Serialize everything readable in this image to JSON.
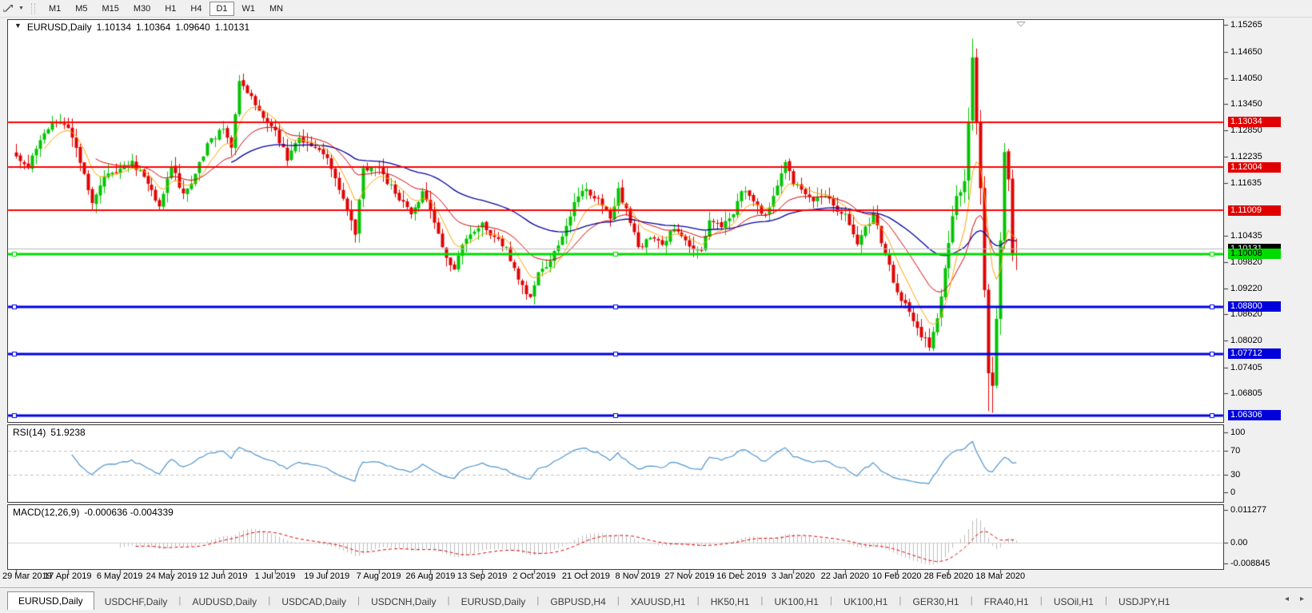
{
  "toolbar": {
    "timeframes": [
      "M1",
      "M5",
      "M15",
      "M30",
      "H1",
      "H4",
      "D1",
      "W1",
      "MN"
    ],
    "selected": "D1",
    "tool_icon": "cursor-tool"
  },
  "icons": {
    "collapse": "▼",
    "dropdown": "▼",
    "scroll_left": "◂",
    "scroll_right": "▸"
  },
  "header": {
    "symbol": "EURUSD,Daily",
    "open": "1.10134",
    "high": "1.10364",
    "low": "1.09640",
    "close": "1.10131"
  },
  "chart_data": {
    "type": "candlestick",
    "symbol": "EURUSD",
    "timeframe": "Daily",
    "bars": 252,
    "ylim": [
      1.0615,
      1.154
    ],
    "x_first_bar": 20,
    "bar_step": 4.985,
    "bars_per_label": 13,
    "anchors": [
      [
        0,
        1.1225
      ],
      [
        3,
        1.1198
      ],
      [
        6,
        1.1262
      ],
      [
        9,
        1.1302
      ],
      [
        13,
        1.129
      ],
      [
        16,
        1.121
      ],
      [
        19,
        1.1118
      ],
      [
        22,
        1.1178
      ],
      [
        26,
        1.1197
      ],
      [
        29,
        1.1215
      ],
      [
        33,
        1.1162
      ],
      [
        36,
        1.111
      ],
      [
        39,
        1.1202
      ],
      [
        42,
        1.114
      ],
      [
        45,
        1.1185
      ],
      [
        48,
        1.1255
      ],
      [
        52,
        1.1288
      ],
      [
        54,
        1.1245
      ],
      [
        56,
        1.1398
      ],
      [
        58,
        1.137
      ],
      [
        61,
        1.133
      ],
      [
        65,
        1.1285
      ],
      [
        68,
        1.1215
      ],
      [
        71,
        1.1268
      ],
      [
        74,
        1.1248
      ],
      [
        78,
        1.1221
      ],
      [
        81,
        1.1148
      ],
      [
        84,
        1.1078
      ],
      [
        85,
        1.1045
      ],
      [
        87,
        1.1198
      ],
      [
        91,
        1.1199
      ],
      [
        95,
        1.1139
      ],
      [
        99,
        1.1092
      ],
      [
        102,
        1.1145
      ],
      [
        104,
        1.1101
      ],
      [
        108,
        1.0992
      ],
      [
        110,
        1.0965
      ],
      [
        112,
        1.1022
      ],
      [
        115,
        1.1052
      ],
      [
        117,
        1.1073
      ],
      [
        120,
        1.104
      ],
      [
        123,
        1.1017
      ],
      [
        126,
        1.0942
      ],
      [
        129,
        1.0902
      ],
      [
        131,
        1.0959
      ],
      [
        134,
        1.0985
      ],
      [
        137,
        1.1041
      ],
      [
        140,
        1.112
      ],
      [
        143,
        1.115
      ],
      [
        146,
        1.1128
      ],
      [
        149,
        1.1082
      ],
      [
        151,
        1.1152
      ],
      [
        154,
        1.1072
      ],
      [
        156,
        1.1017
      ],
      [
        159,
        1.1038
      ],
      [
        162,
        1.1022
      ],
      [
        165,
        1.1058
      ],
      [
        169,
        1.1018
      ],
      [
        172,
        1.1008
      ],
      [
        174,
        1.1078
      ],
      [
        177,
        1.1062
      ],
      [
        180,
        1.1092
      ],
      [
        182,
        1.1145
      ],
      [
        185,
        1.1122
      ],
      [
        188,
        1.109
      ],
      [
        191,
        1.1158
      ],
      [
        193,
        1.1212
      ],
      [
        195,
        1.116
      ],
      [
        198,
        1.1138
      ],
      [
        200,
        1.1122
      ],
      [
        203,
        1.1134
      ],
      [
        206,
        1.1098
      ],
      [
        208,
        1.1093
      ],
      [
        211,
        1.1023
      ],
      [
        215,
        1.1094
      ],
      [
        218,
        1.1
      ],
      [
        221,
        1.0913
      ],
      [
        224,
        1.0868
      ],
      [
        226,
        1.0831
      ],
      [
        229,
        1.0786
      ],
      [
        231,
        1.0853
      ],
      [
        234,
        1.1026
      ],
      [
        236,
        1.1134
      ],
      [
        238,
        1.1168
      ],
      [
        240,
        1.1452
      ],
      [
        241,
        1.1302
      ],
      [
        242,
        1.1152
      ],
      [
        243,
        1.0918
      ],
      [
        244,
        1.0727
      ],
      [
        245,
        1.0698
      ],
      [
        246,
        1.0852
      ],
      [
        247,
        1.1032
      ],
      [
        248,
        1.1235
      ],
      [
        249,
        1.1172
      ],
      [
        250,
        1.0998
      ],
      [
        251,
        1.10131
      ]
    ],
    "wick_overrides": {
      "56": {
        "high": 1.1412
      },
      "85": {
        "low": 1.1027
      },
      "130": {
        "low": 1.0885
      },
      "229": {
        "low": 1.0778
      },
      "240": {
        "high": 1.1495
      },
      "244": {
        "low": 1.064
      },
      "245": {
        "low": 1.0636
      },
      "251": {
        "open": 1.10134,
        "high": 1.10364,
        "low": 1.0964
      }
    },
    "ma_periods": {
      "fast": 8,
      "mid": 21,
      "slow": 55
    },
    "price_ticks": [
      "1.15265",
      "1.14650",
      "1.14050",
      "1.13450",
      "1.12850",
      "1.12235",
      "1.11635",
      "1.10435",
      "1.09820",
      "1.09220",
      "1.08620",
      "1.08020",
      "1.07405",
      "1.06805"
    ],
    "line_labels": [
      {
        "text": "1.13034",
        "price": 1.13034,
        "bg": "#e00000",
        "fg": "#ffffff"
      },
      {
        "text": "1.12004",
        "price": 1.12004,
        "bg": "#e00000",
        "fg": "#ffffff"
      },
      {
        "text": "1.11009",
        "price": 1.11009,
        "bg": "#e00000",
        "fg": "#ffffff"
      },
      {
        "text": "1.10131",
        "price": 1.10131,
        "bg": "#000000",
        "fg": "#ffffff"
      },
      {
        "text": "1.10008",
        "price": 1.10008,
        "bg": "#00db00",
        "fg": "#000000"
      },
      {
        "text": "1.08800",
        "price": 1.088,
        "bg": "#0000dd",
        "fg": "#ffffff"
      },
      {
        "text": "1.07712",
        "price": 1.07712,
        "bg": "#0000dd",
        "fg": "#ffffff"
      },
      {
        "text": "1.06306",
        "price": 1.06306,
        "bg": "#0000dd",
        "fg": "#ffffff"
      }
    ],
    "hlines": {
      "red": [
        1.13034,
        1.12004,
        1.11009
      ],
      "green": [
        1.10008
      ],
      "blue": [
        1.088,
        1.07712,
        1.06306
      ]
    },
    "current_price": 1.10131,
    "date_labels": [
      "29 Mar 2019",
      "17 Apr 2019",
      "6 May 2019",
      "24 May 2019",
      "12 Jun 2019",
      "1 Jul 2019",
      "19 Jul 2019",
      "7 Aug 2019",
      "26 Aug 2019",
      "13 Sep 2019",
      "2 Oct 2019",
      "21 Oct 2019",
      "8 Nov 2019",
      "27 Nov 2019",
      "16 Dec 2019",
      "3 Jan 2020",
      "22 Jan 2020",
      "10 Feb 2020",
      "28 Feb 2020",
      "18 Mar 2020"
    ],
    "colors": {
      "up": "#00c400",
      "down": "#e10000",
      "ma_fast": "#ffa200",
      "ma_mid": "#d40000",
      "ma_slow": "#0000a0",
      "hline_red": "#ff0000",
      "hline_green": "#00db00",
      "hline_blue": "#0000e6",
      "current_line": "#bababa",
      "rsi": "#4f94cd",
      "rsi_level": "#c0c0c0",
      "macd_hist": "#bebebe",
      "macd_signal": "#e00000"
    },
    "indicators": {
      "rsi": {
        "label": "RSI(14)",
        "value": "51.9238",
        "ticks": [
          "100",
          "70",
          "30",
          "0"
        ],
        "tick_values": [
          100,
          70,
          30,
          0
        ],
        "level_lines": [
          70,
          30
        ]
      },
      "macd": {
        "label": "MACD(12,26,9)",
        "values": "-0.000636 -0.004339",
        "ticks": [
          "0.011277",
          "0.00",
          "-0.008845"
        ],
        "tick_values": [
          0.011277,
          0,
          -0.008845
        ]
      }
    }
  },
  "tabs": {
    "items": [
      {
        "label": "EURUSD,Daily",
        "active": true
      },
      {
        "label": "USDCHF,Daily",
        "active": false
      },
      {
        "label": "AUDUSD,Daily",
        "active": false
      },
      {
        "label": "USDCAD,Daily",
        "active": false
      },
      {
        "label": "USDCNH,Daily",
        "active": false
      },
      {
        "label": "EURUSD,Daily",
        "active": false
      },
      {
        "label": "GBPUSD,H4",
        "active": false
      },
      {
        "label": "XAUUSD,H1",
        "active": false
      },
      {
        "label": "HK50,H1",
        "active": false
      },
      {
        "label": "UK100,H1",
        "active": false
      },
      {
        "label": "UK100,H1",
        "active": false
      },
      {
        "label": "GER30,H1",
        "active": false
      },
      {
        "label": "FRA40,H1",
        "active": false
      },
      {
        "label": "USOil,H1",
        "active": false
      },
      {
        "label": "USDJPY,H1",
        "active": false
      }
    ]
  }
}
